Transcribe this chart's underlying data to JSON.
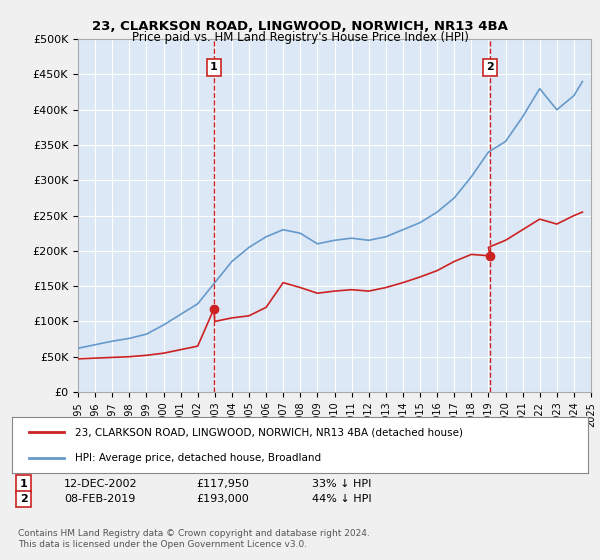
{
  "title": "23, CLARKSON ROAD, LINGWOOD, NORWICH, NR13 4BA",
  "subtitle": "Price paid vs. HM Land Registry's House Price Index (HPI)",
  "background_color": "#e8f0f8",
  "plot_bg_color": "#dce8f5",
  "ylim": [
    0,
    500000
  ],
  "yticks": [
    0,
    50000,
    100000,
    150000,
    200000,
    250000,
    300000,
    350000,
    400000,
    450000,
    500000
  ],
  "ytick_labels": [
    "£0",
    "£50K",
    "£100K",
    "£150K",
    "£200K",
    "£250K",
    "£300K",
    "£350K",
    "£400K",
    "£450K",
    "£500K"
  ],
  "xmin": 1995,
  "xmax": 2025,
  "xticks": [
    1995,
    1996,
    1997,
    1998,
    1999,
    2000,
    2001,
    2002,
    2003,
    2004,
    2005,
    2006,
    2007,
    2008,
    2009,
    2010,
    2011,
    2012,
    2013,
    2014,
    2015,
    2016,
    2017,
    2018,
    2019,
    2020,
    2021,
    2022,
    2023,
    2024,
    2025
  ],
  "hpi_color": "#6699cc",
  "price_color": "#cc2222",
  "marker1_date": 2002.95,
  "marker1_label": "1",
  "marker1_price": 117950,
  "marker1_text": "12-DEC-2002    £117,950    33% ↓ HPI",
  "marker2_date": 2019.1,
  "marker2_label": "2",
  "marker2_price": 193000,
  "marker2_text": "08-FEB-2019    £193,000    44% ↓ HPI",
  "legend_line1": "23, CLARKSON ROAD, LINGWOOD, NORWICH, NR13 4BA (detached house)",
  "legend_line2": "HPI: Average price, detached house, Broadland",
  "footer": "Contains HM Land Registry data © Crown copyright and database right 2024.\nThis data is licensed under the Open Government Licence v3.0.",
  "hpi_x": [
    1995,
    1996,
    1997,
    1998,
    1999,
    2000,
    2001,
    2002,
    2003,
    2004,
    2005,
    2006,
    2007,
    2008,
    2009,
    2010,
    2011,
    2012,
    2013,
    2014,
    2015,
    2016,
    2017,
    2018,
    2019,
    2020,
    2021,
    2022,
    2023,
    2024,
    2024.5
  ],
  "hpi_y": [
    62000,
    67000,
    72000,
    76000,
    82000,
    95000,
    110000,
    125000,
    155000,
    185000,
    205000,
    220000,
    230000,
    225000,
    210000,
    215000,
    218000,
    215000,
    220000,
    230000,
    240000,
    255000,
    275000,
    305000,
    340000,
    355000,
    390000,
    430000,
    400000,
    420000,
    440000
  ],
  "price_x": [
    1995,
    1996,
    1997,
    1998,
    1999,
    2000,
    2001,
    2002,
    2002.95,
    2003,
    2004,
    2005,
    2006,
    2007,
    2008,
    2009,
    2010,
    2011,
    2012,
    2013,
    2014,
    2015,
    2016,
    2017,
    2018,
    2019.1,
    2019,
    2020,
    2021,
    2022,
    2023,
    2024,
    2024.5
  ],
  "price_y": [
    47000,
    48000,
    49000,
    50000,
    52000,
    55000,
    60000,
    65000,
    117950,
    100000,
    105000,
    108000,
    120000,
    155000,
    148000,
    140000,
    143000,
    145000,
    143000,
    148000,
    155000,
    163000,
    172000,
    185000,
    195000,
    193000,
    205000,
    215000,
    230000,
    245000,
    238000,
    250000,
    255000
  ]
}
